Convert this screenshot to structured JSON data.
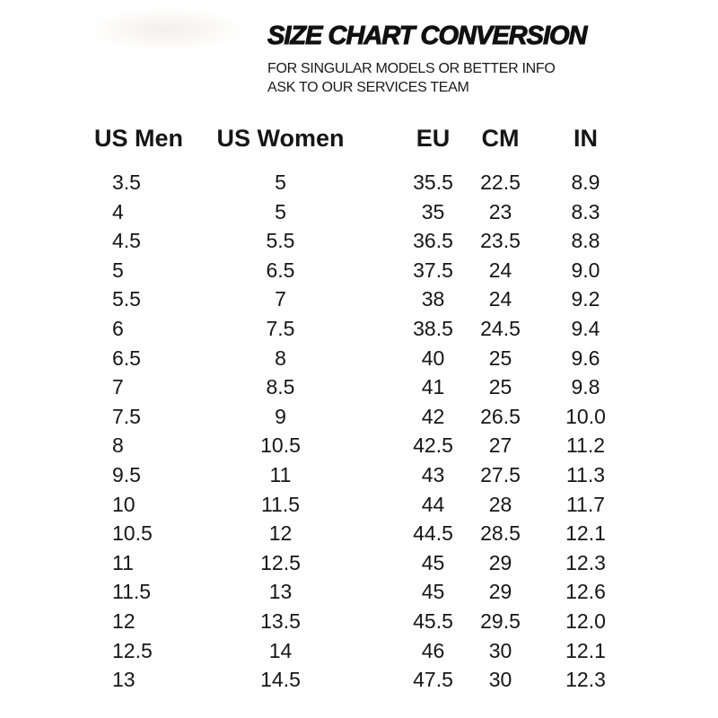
{
  "header": {
    "title": "SIZE CHART CONVERSION",
    "subtitle_line1": "FOR SINGULAR MODELS OR BETTER INFO",
    "subtitle_line2": "ASK TO OUR SERVICES TEAM"
  },
  "colors": {
    "text": "#121212",
    "background": "#ffffff"
  },
  "chart_data": {
    "type": "table",
    "title": "SIZE CHART CONVERSION",
    "columns": [
      "US Men",
      "US Women",
      "EU",
      "CM",
      "IN"
    ],
    "rows": [
      [
        "3.5",
        "5",
        "35.5",
        "22.5",
        "8.9"
      ],
      [
        "4",
        "5",
        "35",
        "23",
        "8.3"
      ],
      [
        "4.5",
        "5.5",
        "36.5",
        "23.5",
        "8.8"
      ],
      [
        "5",
        "6.5",
        "37.5",
        "24",
        "9.0"
      ],
      [
        "5.5",
        "7",
        "38",
        "24",
        "9.2"
      ],
      [
        "6",
        "7.5",
        "38.5",
        "24.5",
        "9.4"
      ],
      [
        "6.5",
        "8",
        "40",
        "25",
        "9.6"
      ],
      [
        "7",
        "8.5",
        "41",
        "25",
        "9.8"
      ],
      [
        "7.5",
        "9",
        "42",
        "26.5",
        "10.0"
      ],
      [
        "8",
        "10.5",
        "42.5",
        "27",
        "11.2"
      ],
      [
        "9.5",
        "11",
        "43",
        "27.5",
        "11.3"
      ],
      [
        "10",
        "11.5",
        "44",
        "28",
        "11.7"
      ],
      [
        "10.5",
        "12",
        "44.5",
        "28.5",
        "12.1"
      ],
      [
        "11",
        "12.5",
        "45",
        "29",
        "12.3"
      ],
      [
        "11.5",
        "13",
        "45",
        "29",
        "12.6"
      ],
      [
        "12",
        "13.5",
        "45.5",
        "29.5",
        "12.0"
      ],
      [
        "12.5",
        "14",
        "46",
        "30",
        "12.1"
      ],
      [
        "13",
        "14.5",
        "47.5",
        "30",
        "12.3"
      ]
    ]
  }
}
